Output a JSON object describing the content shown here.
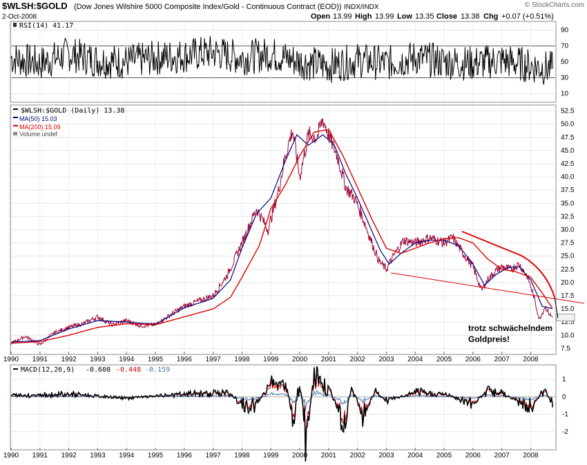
{
  "header": {
    "symbol": "$WLSH:$GOLD",
    "description": "(Dow Jones Wilshire 5000 Composite Index/Gold - Continuous Contract (EOD))",
    "exchange": "INDX/INDX",
    "date": "2-Oct-2008",
    "brand": "© StockCharts.com",
    "open_label": "Open",
    "open": "13.99",
    "high_label": "High",
    "high": "13.99",
    "low_label": "Low",
    "low": "13.35",
    "close_label": "Close",
    "close": "13.38",
    "chg_label": "Chg",
    "chg": "+0.07 (+0.51%)"
  },
  "annotation": {
    "line1": "trotz schwächelndem",
    "line2": "Goldpreis!"
  },
  "colors": {
    "price": "#990033",
    "ma50": "#000080",
    "ma200": "#dd0000",
    "macd": "#000000",
    "signal": "#cc0000",
    "hist": "#4477aa",
    "annotation": "#dd0000"
  },
  "chart_data": [
    {
      "type": "line",
      "name": "RSI panel",
      "legend": "RSI(14) 41.17",
      "ylim": [
        0,
        100
      ],
      "y_ticks": [
        10,
        30,
        50,
        70,
        90
      ],
      "reference_lines": [
        30,
        70
      ],
      "x": [
        1990,
        1991,
        1992,
        1993,
        1994,
        1995,
        1996,
        1997,
        1998,
        1999,
        2000,
        2001,
        2002,
        2003,
        2004,
        2005,
        2006,
        2007,
        2008,
        2008.76
      ],
      "values": [
        55,
        48,
        60,
        52,
        50,
        55,
        58,
        62,
        55,
        60,
        50,
        45,
        52,
        48,
        55,
        50,
        48,
        52,
        45,
        41.17
      ]
    },
    {
      "type": "line",
      "name": "Price panel",
      "ylim": [
        6.5,
        53.5
      ],
      "y_ticks": [
        7.5,
        10.0,
        12.5,
        15.0,
        17.5,
        20.0,
        22.5,
        25.0,
        27.5,
        30.0,
        32.5,
        35.0,
        37.5,
        40.0,
        42.5,
        45.0,
        47.5,
        50.0,
        52.5
      ],
      "x_ticks": [
        "1990",
        "1991",
        "1992",
        "1993",
        "1994",
        "1995",
        "1996",
        "1997",
        "1998",
        "1999",
        "2000",
        "2001",
        "2002",
        "2003",
        "2004",
        "2005",
        "2006",
        "2007",
        "2008"
      ],
      "legend": [
        "$WLSH:$GOLD (Daily) 13.38",
        "MA(50) 15.03",
        "MA(200) 15.09",
        "Volume undef"
      ],
      "series": [
        {
          "name": "$WLSH:$GOLD (Daily) 13.38",
          "x": [
            1990,
            1990.5,
            1991,
            1991.5,
            1992,
            1992.5,
            1993,
            1993.5,
            1994,
            1994.5,
            1995,
            1995.5,
            1996,
            1996.5,
            1997,
            1997.5,
            1998,
            1998.5,
            1998.9,
            1999.25,
            1999.5,
            1999.75,
            2000,
            2000.3,
            2000.6,
            2000.8,
            2001,
            2001.3,
            2001.6,
            2001.9,
            2002.2,
            2002.5,
            2002.75,
            2003,
            2003.3,
            2003.6,
            2004,
            2004.5,
            2005,
            2005.3,
            2005.6,
            2006,
            2006.3,
            2006.5,
            2006.75,
            2007,
            2007.3,
            2007.6,
            2007.9,
            2008.1,
            2008.3,
            2008.5,
            2008.65,
            2008.76
          ],
          "values": [
            8.5,
            9.8,
            8.2,
            10.5,
            11.5,
            12.2,
            13.5,
            12.0,
            12.8,
            11.8,
            12.0,
            13.8,
            15.5,
            16.5,
            17.5,
            21.5,
            27.5,
            34.0,
            30.0,
            37.0,
            44.0,
            49.0,
            40.0,
            48.0,
            47.5,
            51.0,
            48.0,
            44.0,
            38.0,
            36.0,
            32.0,
            27.5,
            24.0,
            22.5,
            25.5,
            28.0,
            27.5,
            28.5,
            27.5,
            28.5,
            26.0,
            23.0,
            18.5,
            20.5,
            22.0,
            23.0,
            22.5,
            23.5,
            21.0,
            17.5,
            13.0,
            15.5,
            14.0,
            13.38
          ]
        },
        {
          "name": "MA(50) 15.03",
          "x": [
            1990,
            1991,
            1992,
            1993,
            1994,
            1995,
            1996,
            1997,
            1997.6,
            1998,
            1998.5,
            1999,
            1999.5,
            1999.9,
            2000.3,
            2000.8,
            2001.2,
            2001.6,
            2002,
            2002.4,
            2002.8,
            2003.1,
            2003.5,
            2004,
            2004.5,
            2005,
            2005.5,
            2006,
            2006.4,
            2006.8,
            2007.2,
            2007.6,
            2008,
            2008.4,
            2008.76
          ],
          "values": [
            8.7,
            9.0,
            11.2,
            12.8,
            12.5,
            12.1,
            15.2,
            17.0,
            20.5,
            26.5,
            33.0,
            36.0,
            43.0,
            48.0,
            46.0,
            48.0,
            46.0,
            40.5,
            36.0,
            31.0,
            26.0,
            23.5,
            25.5,
            27.5,
            28.0,
            28.0,
            27.0,
            23.5,
            19.5,
            21.5,
            22.8,
            23.0,
            20.5,
            15.5,
            15.03
          ]
        },
        {
          "name": "MA(200) 15.09",
          "x": [
            1990,
            1991,
            1992,
            1993,
            1994,
            1995,
            1996,
            1997,
            1997.6,
            1998,
            1998.6,
            1999,
            1999.5,
            2000,
            2000.5,
            2001,
            2001.5,
            2002,
            2002.5,
            2003,
            2003.5,
            2004,
            2004.5,
            2005,
            2005.5,
            2006,
            2006.5,
            2007,
            2007.5,
            2008,
            2008.4,
            2008.76
          ],
          "values": [
            8.5,
            8.8,
            10.0,
            11.5,
            12.2,
            12.0,
            13.5,
            15.0,
            17.2,
            21.0,
            27.0,
            34.0,
            38.5,
            44.0,
            48.5,
            49.0,
            44.0,
            38.0,
            32.0,
            26.5,
            25.5,
            26.5,
            27.5,
            28.3,
            28.5,
            27.5,
            24.5,
            22.5,
            22.0,
            21.0,
            18.0,
            15.09
          ]
        }
      ]
    },
    {
      "type": "line",
      "name": "MACD panel",
      "legend": [
        "MACD(12,26,9)",
        "-0.608",
        "-0.448",
        "-0.159"
      ],
      "ylim": [
        -3,
        1.8
      ],
      "y_ticks": [
        1,
        0,
        -1,
        -2
      ],
      "x_ticks": [
        "1990",
        "1991",
        "1992",
        "1993",
        "1994",
        "1995",
        "1996",
        "1997",
        "1998",
        "1999",
        "2000",
        "2001",
        "2002",
        "2003",
        "2004",
        "2005",
        "2006",
        "2007",
        "2008"
      ],
      "series": [
        {
          "name": "MACD",
          "x": [
            1990,
            1992,
            1994,
            1996,
            1997.5,
            1998.3,
            1999,
            1999.5,
            1999.8,
            2000,
            2000.2,
            2000.5,
            2001,
            2001.5,
            2001.8,
            2002.2,
            2002.6,
            2003,
            2004,
            2005,
            2006,
            2006.5,
            2007,
            2008,
            2008.5,
            2008.76
          ],
          "values": [
            0.1,
            0.2,
            -0.1,
            0.2,
            0.3,
            -1.0,
            0.9,
            1.0,
            -1.8,
            1.5,
            -2.8,
            1.4,
            0.8,
            -2.2,
            0.6,
            -1.2,
            0.4,
            -0.3,
            0.3,
            0.2,
            -0.5,
            0.5,
            0.3,
            -0.8,
            0.6,
            -0.608
          ]
        },
        {
          "name": "Signal",
          "x": [
            1990,
            1992,
            1994,
            1996,
            1997.5,
            1998.3,
            1999,
            1999.5,
            1999.8,
            2000,
            2000.2,
            2000.5,
            2001,
            2001.5,
            2001.8,
            2002.2,
            2002.6,
            2003,
            2004,
            2005,
            2006,
            2006.5,
            2007,
            2008,
            2008.5,
            2008.76
          ],
          "values": [
            0.1,
            0.15,
            -0.05,
            0.15,
            0.25,
            -0.7,
            0.7,
            0.8,
            -1.3,
            1.1,
            -2.2,
            1.0,
            0.6,
            -1.7,
            0.4,
            -0.9,
            0.3,
            -0.2,
            0.25,
            0.15,
            -0.4,
            0.35,
            0.25,
            -0.6,
            0.45,
            -0.448
          ]
        }
      ]
    }
  ]
}
